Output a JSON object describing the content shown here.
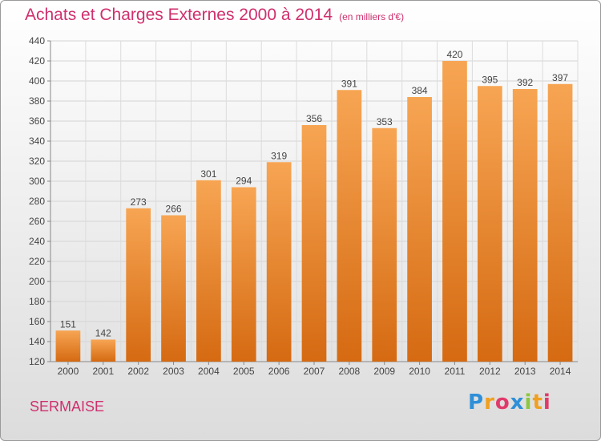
{
  "header": {
    "title": "Achats et Charges Externes 2000 à 2014",
    "unit": "(en milliers d'€)"
  },
  "footer": {
    "place": "SERMAISE",
    "logo": "Proxiti"
  },
  "colors": {
    "accent": "#cf2f6e",
    "bar_light": "#f7a553",
    "bar_dark": "#d56a12"
  },
  "chart_data": {
    "type": "bar",
    "title": "Achats et Charges Externes 2000 à 2014",
    "subtitle": "(en milliers d'€)",
    "xlabel": "",
    "ylabel": "",
    "categories": [
      "2000",
      "2001",
      "2002",
      "2003",
      "2004",
      "2005",
      "2006",
      "2007",
      "2008",
      "2009",
      "2010",
      "2011",
      "2012",
      "2013",
      "2014"
    ],
    "values": [
      151,
      142,
      273,
      266,
      301,
      294,
      319,
      356,
      391,
      353,
      384,
      420,
      395,
      392,
      397
    ],
    "ylim": [
      120,
      440
    ],
    "yticks": [
      120,
      140,
      160,
      180,
      200,
      220,
      240,
      260,
      280,
      300,
      320,
      340,
      360,
      380,
      400,
      420,
      440
    ],
    "grid": true,
    "data_labels": true
  }
}
